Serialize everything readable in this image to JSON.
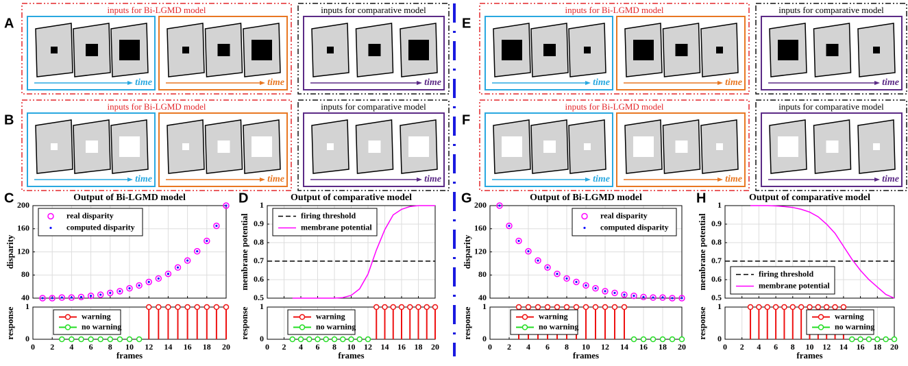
{
  "diagrams": [
    {
      "panel": "A",
      "groups": [
        {
          "label": "inputs for Bi-LGMD model",
          "boxes": [
            {
              "arrow": "time"
            },
            {
              "arrow": "time"
            }
          ]
        },
        {
          "label": "inputs for comparative model",
          "boxes": [
            {
              "arrow": "time"
            }
          ]
        }
      ]
    },
    {
      "panel": "B",
      "groups": [
        {
          "label": "inputs for Bi-LGMD model",
          "boxes": [
            {
              "arrow": "time"
            },
            {
              "arrow": "time"
            }
          ]
        },
        {
          "label": "inputs for comparative model",
          "boxes": [
            {
              "arrow": "time"
            }
          ]
        }
      ]
    },
    {
      "panel": "E",
      "groups": [
        {
          "label": "inputs for Bi-LGMD model",
          "boxes": [
            {
              "arrow": "time"
            },
            {
              "arrow": "time"
            }
          ]
        },
        {
          "label": "inputs for comparative model",
          "boxes": [
            {
              "arrow": "time"
            }
          ]
        }
      ]
    },
    {
      "panel": "F",
      "groups": [
        {
          "label": "inputs for Bi-LGMD model",
          "boxes": [
            {
              "arrow": "time"
            },
            {
              "arrow": "time"
            }
          ]
        },
        {
          "label": "inputs for comparative model",
          "boxes": [
            {
              "arrow": "time"
            }
          ]
        }
      ]
    }
  ],
  "chart_data": [
    {
      "type": "scatter",
      "panel": "C",
      "title": "Output of Bi-LGMD model",
      "ylabel": "disparity",
      "xlim": [
        0,
        20
      ],
      "ylim": [
        40,
        200
      ],
      "xticks": [
        0,
        2,
        4,
        6,
        8,
        10,
        12,
        14,
        16,
        18,
        20
      ],
      "xticklabels": false,
      "yticks": [
        40,
        80,
        120,
        160,
        200
      ],
      "grid": true,
      "legend": "upper left",
      "x": [
        1,
        2,
        3,
        4,
        5,
        6,
        7,
        8,
        9,
        10,
        11,
        12,
        13,
        14,
        15,
        16,
        17,
        18,
        19,
        20
      ],
      "series": [
        {
          "name": "real disparity",
          "color": "#ff00ff",
          "marker": "o",
          "values": [
            40,
            40,
            41,
            41,
            42,
            44,
            46,
            49,
            52,
            57,
            62,
            68,
            74,
            82,
            93,
            105,
            121,
            139,
            165,
            200
          ]
        },
        {
          "name": "computed disparity",
          "color": "#1010ff",
          "marker": ".",
          "values": [
            40,
            40,
            41,
            41,
            42,
            44,
            46,
            49,
            52,
            57,
            62,
            68,
            74,
            82,
            93,
            105,
            121,
            139,
            165,
            200
          ]
        }
      ]
    },
    {
      "type": "stem",
      "ylabel": "response",
      "xlabel": "frames",
      "xlim": [
        0,
        20
      ],
      "ylim": [
        0,
        1
      ],
      "xticks": [
        0,
        2,
        4,
        6,
        8,
        10,
        12,
        14,
        16,
        18,
        20
      ],
      "yticks": [
        0,
        1
      ],
      "grid": true,
      "legend": "upper left",
      "series": [
        {
          "name": "warning",
          "color": "#ee1111",
          "x": [
            12,
            13,
            14,
            15,
            16,
            17,
            18,
            19,
            20
          ],
          "values": [
            1,
            1,
            1,
            1,
            1,
            1,
            1,
            1,
            1
          ]
        },
        {
          "name": "no warning",
          "color": "#22dd22",
          "x": [
            3,
            4,
            5,
            6,
            7,
            8,
            9,
            10,
            11
          ],
          "values": [
            0,
            0,
            0,
            0,
            0,
            0,
            0,
            0,
            0
          ]
        }
      ]
    },
    {
      "type": "line",
      "panel": "D",
      "title": "Output of comparative model",
      "ylabel": "membrane potential",
      "xlim": [
        0,
        20
      ],
      "ylim": [
        0.5,
        1
      ],
      "xticks": [
        0,
        2,
        4,
        6,
        8,
        10,
        12,
        14,
        16,
        18,
        20
      ],
      "xticklabels": false,
      "yticks": [
        0.5,
        0.6,
        0.7,
        0.8,
        0.9,
        1
      ],
      "grid": true,
      "legend": "upper left",
      "series": [
        {
          "name": "firing threshold",
          "color": "#000000",
          "dash": true,
          "x": [
            0,
            20
          ],
          "values": [
            0.7,
            0.7
          ]
        },
        {
          "name": "membrane potential",
          "color": "#ff00ff",
          "dash": false,
          "x": [
            3,
            4,
            5,
            6,
            7,
            8,
            9,
            10,
            11,
            12,
            13,
            14,
            15,
            16,
            17,
            18,
            19,
            20
          ],
          "values": [
            0.5,
            0.5,
            0.5,
            0.5,
            0.5,
            0.5,
            0.503,
            0.515,
            0.55,
            0.63,
            0.76,
            0.87,
            0.95,
            0.98,
            0.995,
            1,
            1,
            1
          ]
        }
      ]
    },
    {
      "type": "stem",
      "ylabel": "response",
      "xlabel": "frames",
      "xlim": [
        0,
        20
      ],
      "ylim": [
        0,
        1
      ],
      "xticks": [
        0,
        2,
        4,
        6,
        8,
        10,
        12,
        14,
        16,
        18,
        20
      ],
      "yticks": [
        0,
        1
      ],
      "grid": true,
      "legend": "upper left",
      "series": [
        {
          "name": "warning",
          "color": "#ee1111",
          "x": [
            13,
            14,
            15,
            16,
            17,
            18,
            19,
            20
          ],
          "values": [
            1,
            1,
            1,
            1,
            1,
            1,
            1,
            1
          ]
        },
        {
          "name": "no warning",
          "color": "#22dd22",
          "x": [
            3,
            4,
            5,
            6,
            7,
            8,
            9,
            10,
            11,
            12
          ],
          "values": [
            0,
            0,
            0,
            0,
            0,
            0,
            0,
            0,
            0,
            0
          ]
        }
      ]
    },
    {
      "type": "scatter",
      "panel": "G",
      "title": "Output of Bi-LGMD model",
      "ylabel": "disparity",
      "xlim": [
        0,
        20
      ],
      "ylim": [
        40,
        200
      ],
      "xticks": [
        0,
        2,
        4,
        6,
        8,
        10,
        12,
        14,
        16,
        18,
        20
      ],
      "xticklabels": false,
      "yticks": [
        40,
        80,
        120,
        160,
        200
      ],
      "grid": true,
      "legend": "upper right",
      "x": [
        1,
        2,
        3,
        4,
        5,
        6,
        7,
        8,
        9,
        10,
        11,
        12,
        13,
        14,
        15,
        16,
        17,
        18,
        19,
        20
      ],
      "series": [
        {
          "name": "real disparity",
          "color": "#ff00ff",
          "marker": "o",
          "values": [
            200,
            165,
            139,
            121,
            105,
            93,
            82,
            74,
            68,
            62,
            57,
            52,
            49,
            46,
            44,
            42,
            41,
            41,
            40,
            40
          ]
        },
        {
          "name": "computed disparity",
          "color": "#1010ff",
          "marker": ".",
          "values": [
            200,
            165,
            139,
            121,
            105,
            93,
            82,
            74,
            68,
            62,
            57,
            52,
            49,
            46,
            44,
            42,
            41,
            41,
            40,
            40
          ]
        }
      ]
    },
    {
      "type": "stem",
      "ylabel": "response",
      "xlabel": "frames",
      "xlim": [
        0,
        20
      ],
      "ylim": [
        0,
        1
      ],
      "xticks": [
        0,
        2,
        4,
        6,
        8,
        10,
        12,
        14,
        16,
        18,
        20
      ],
      "yticks": [
        0,
        1
      ],
      "grid": true,
      "legend": "upper left",
      "series": [
        {
          "name": "warning",
          "color": "#ee1111",
          "x": [
            3,
            4,
            5,
            6,
            7,
            8,
            9,
            10,
            11,
            12,
            13,
            14
          ],
          "values": [
            1,
            1,
            1,
            1,
            1,
            1,
            1,
            1,
            1,
            1,
            1,
            1
          ]
        },
        {
          "name": "no warning",
          "color": "#22dd22",
          "x": [
            15,
            16,
            17,
            18,
            19,
            20
          ],
          "values": [
            0,
            0,
            0,
            0,
            0,
            0
          ]
        }
      ]
    },
    {
      "type": "line",
      "panel": "H",
      "title": "Output of comparative model",
      "ylabel": "membrane potential",
      "xlim": [
        0,
        20
      ],
      "ylim": [
        0.5,
        1
      ],
      "xticks": [
        0,
        2,
        4,
        6,
        8,
        10,
        12,
        14,
        16,
        18,
        20
      ],
      "xticklabels": false,
      "yticks": [
        0.5,
        0.6,
        0.7,
        0.8,
        0.9,
        1
      ],
      "grid": true,
      "legend": "lower left",
      "series": [
        {
          "name": "firing threshold",
          "color": "#000000",
          "dash": true,
          "x": [
            0,
            20
          ],
          "values": [
            0.7,
            0.7
          ]
        },
        {
          "name": "membrane potential",
          "color": "#ff00ff",
          "dash": false,
          "x": [
            3,
            4,
            5,
            6,
            7,
            8,
            9,
            10,
            11,
            12,
            13,
            14,
            15,
            16,
            17,
            18,
            19,
            20
          ],
          "values": [
            1,
            1,
            1,
            0.998,
            0.995,
            0.99,
            0.98,
            0.965,
            0.94,
            0.9,
            0.85,
            0.78,
            0.71,
            0.65,
            0.6,
            0.56,
            0.52,
            0.5
          ]
        }
      ]
    },
    {
      "type": "stem",
      "ylabel": "response",
      "xlabel": "frames",
      "xlim": [
        0,
        20
      ],
      "ylim": [
        0,
        1
      ],
      "xticks": [
        0,
        2,
        4,
        6,
        8,
        10,
        12,
        14,
        16,
        18,
        20
      ],
      "yticks": [
        0,
        1
      ],
      "grid": true,
      "legend": "upper right",
      "series": [
        {
          "name": "warning",
          "color": "#ee1111",
          "x": [
            3,
            4,
            5,
            6,
            7,
            8,
            9,
            10,
            11,
            12,
            13,
            14
          ],
          "values": [
            1,
            1,
            1,
            1,
            1,
            1,
            1,
            1,
            1,
            1,
            1,
            1
          ]
        },
        {
          "name": "no warning",
          "color": "#22dd22",
          "x": [
            15,
            16,
            17,
            18,
            19,
            20
          ],
          "values": [
            0,
            0,
            0,
            0,
            0,
            0
          ]
        }
      ]
    }
  ]
}
